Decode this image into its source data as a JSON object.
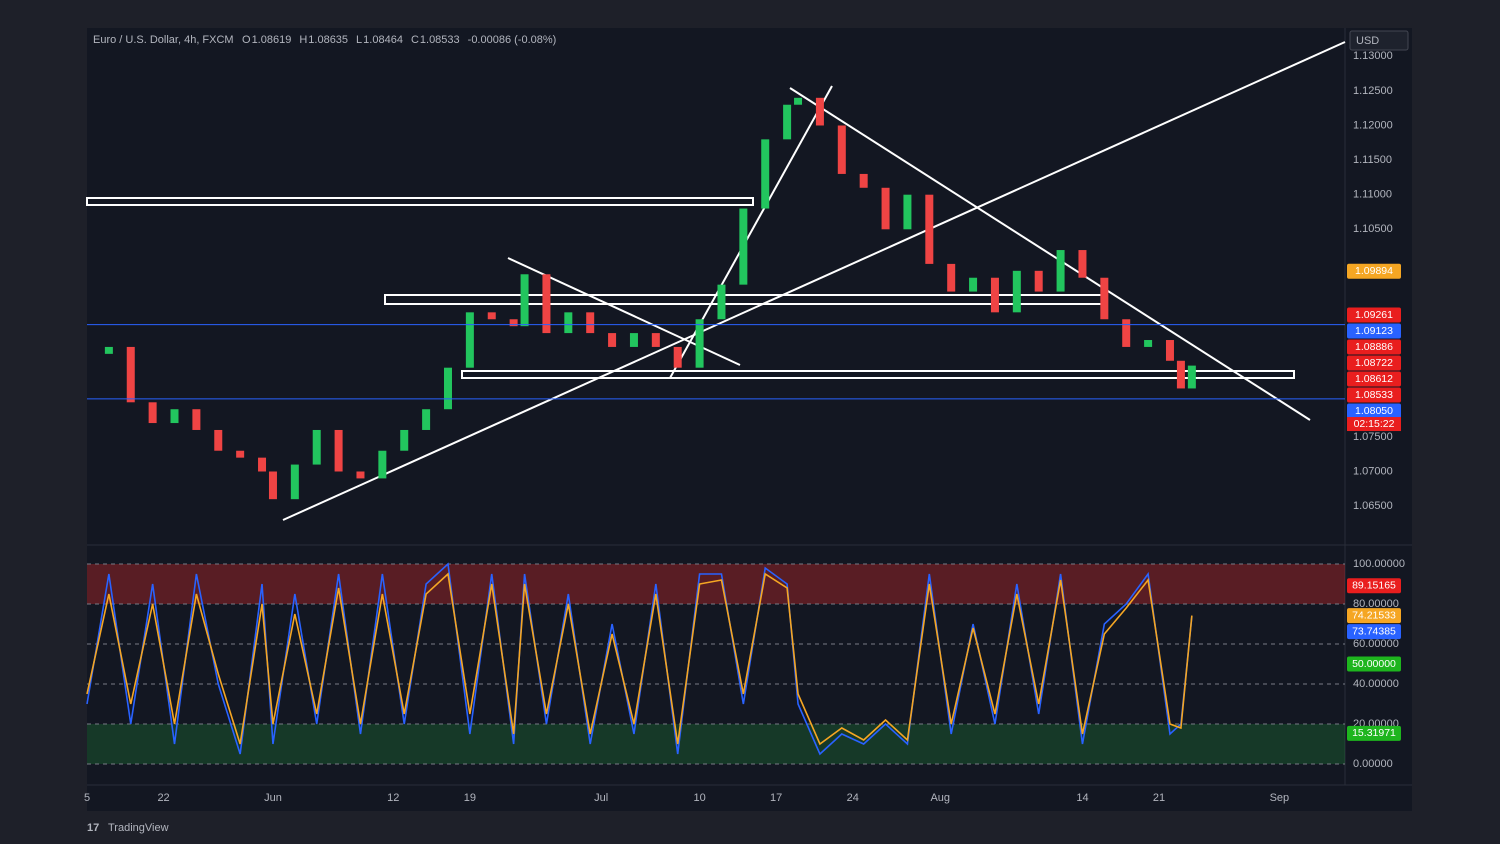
{
  "header": {
    "symbol": "Euro / U.S. Dollar, 4h, FXCM",
    "ohlc": [
      {
        "key": "O",
        "value": "1.08619"
      },
      {
        "key": "H",
        "value": "1.08635"
      },
      {
        "key": "L",
        "value": "1.08464"
      },
      {
        "key": "C",
        "value": "1.08533"
      }
    ],
    "change": "-0.00086 (-0.08%)"
  },
  "currency": "USD",
  "brand": "TradingView",
  "chart_data": [
    {
      "type": "candlestick",
      "x": [
        135,
        137,
        139,
        141,
        143,
        145,
        147,
        149,
        151,
        152,
        154,
        156,
        158,
        160,
        162,
        164,
        166,
        168,
        170,
        172,
        174,
        175,
        177,
        179,
        181,
        183,
        185,
        187,
        189,
        191,
        193,
        195,
        197,
        199,
        200,
        202,
        204,
        206,
        208,
        210,
        212,
        214,
        216,
        218,
        220,
        222,
        224,
        226,
        228,
        230,
        232,
        234,
        235,
        236
      ],
      "values": [
        1.087,
        1.088,
        1.08,
        1.077,
        1.079,
        1.076,
        1.073,
        1.072,
        1.07,
        1.066,
        1.071,
        1.076,
        1.07,
        1.069,
        1.073,
        1.076,
        1.079,
        1.085,
        1.093,
        1.092,
        1.091,
        1.0985,
        1.09,
        1.093,
        1.09,
        1.088,
        1.09,
        1.088,
        1.085,
        1.092,
        1.097,
        1.108,
        1.118,
        1.123,
        1.124,
        1.12,
        1.113,
        1.111,
        1.105,
        1.11,
        1.1,
        1.096,
        1.098,
        1.093,
        1.099,
        1.096,
        1.102,
        1.098,
        1.092,
        1.088,
        1.089,
        1.086,
        1.082,
        1.0853
      ],
      "up_color": "#22c55e",
      "down_color": "#ef4444",
      "xlim": [
        135,
        250
      ],
      "xticks": [
        {
          "value": 135,
          "label": "5"
        },
        {
          "value": 142,
          "label": "22"
        },
        {
          "value": 152,
          "label": "Jun"
        },
        {
          "value": 163,
          "label": "12"
        },
        {
          "value": 170,
          "label": "19"
        },
        {
          "value": 182,
          "label": "Jul"
        },
        {
          "value": 191,
          "label": "10"
        },
        {
          "value": 198,
          "label": "17"
        },
        {
          "value": 205,
          "label": "24"
        },
        {
          "value": 213,
          "label": "Aug"
        },
        {
          "value": 226,
          "label": "14"
        },
        {
          "value": 233,
          "label": "21"
        },
        {
          "value": 244,
          "label": "Sep"
        }
      ],
      "ylim": [
        1.0601,
        1.1338
      ],
      "yticks": [
        {
          "value": 1.13,
          "label": "1.13000"
        },
        {
          "value": 1.125,
          "label": "1.12500"
        },
        {
          "value": 1.12,
          "label": "1.12000"
        },
        {
          "value": 1.115,
          "label": "1.11500"
        },
        {
          "value": 1.11,
          "label": "1.11000"
        },
        {
          "value": 1.105,
          "label": "1.10500"
        },
        {
          "value": 1.075,
          "label": "1.07500"
        },
        {
          "value": 1.07,
          "label": "1.07000"
        },
        {
          "value": 1.065,
          "label": "1.06500"
        }
      ],
      "price_tags": [
        {
          "value": 1.09894,
          "color": "#f5a623"
        },
        {
          "value": 1.09261,
          "color": "#e91e1e"
        },
        {
          "value": 1.09123,
          "color": "#2962ff",
          "line": true
        },
        {
          "value": 1.08886,
          "color": "#e91e1e"
        },
        {
          "value": 1.08722,
          "color": "#e91e1e"
        },
        {
          "value": 1.08612,
          "color": "#e91e1e"
        },
        {
          "value": 1.08533,
          "color": "#e91e1e"
        },
        {
          "value": 1.0805,
          "label": "1.08050",
          "color": "#2962ff",
          "line": true
        }
      ],
      "countdown": "02:15:22"
    },
    {
      "type": "line",
      "series": [
        {
          "color": "#2962ff",
          "values": [
            30,
            95,
            20,
            90,
            10,
            95,
            40,
            5,
            90,
            10,
            85,
            20,
            95,
            15,
            95,
            20,
            90,
            100,
            15,
            95,
            10,
            95,
            20,
            85,
            10,
            70,
            15,
            90,
            5,
            95,
            95,
            30,
            98,
            90,
            30,
            5,
            15,
            10,
            20,
            10,
            95,
            15,
            70,
            20,
            90,
            25,
            95,
            10,
            70,
            80,
            95,
            15,
            20,
            73.7
          ]
        },
        {
          "color": "#f5a623",
          "values": [
            35,
            85,
            30,
            80,
            20,
            85,
            45,
            10,
            80,
            20,
            75,
            25,
            88,
            20,
            85,
            25,
            85,
            95,
            25,
            90,
            15,
            90,
            25,
            80,
            15,
            65,
            20,
            85,
            10,
            90,
            92,
            35,
            95,
            88,
            35,
            10,
            18,
            12,
            22,
            12,
            90,
            20,
            68,
            25,
            85,
            30,
            92,
            15,
            65,
            78,
            92,
            20,
            18,
            74.2
          ]
        }
      ],
      "ylim": [
        -7,
        108
      ],
      "yticks": [
        {
          "value": 0,
          "label": "0.00000"
        },
        {
          "value": 20,
          "label": "20.00000"
        },
        {
          "value": 40,
          "label": "40.00000"
        },
        {
          "value": 60,
          "label": "60.00000"
        },
        {
          "value": 80,
          "label": "80.00000"
        },
        {
          "value": 100,
          "label": "100.00000"
        }
      ],
      "price_tags": [
        {
          "value": 89.15165,
          "label": "89.15165",
          "color": "#e91e1e"
        },
        {
          "value": 74.21533,
          "label": "74.21533",
          "color": "#f5a623"
        },
        {
          "value": 73.74385,
          "label": "73.74385",
          "color": "#2962ff"
        },
        {
          "value": 50,
          "label": "50.00000",
          "color": "#1eb51e"
        },
        {
          "value": 15.31971,
          "label": "15.31971",
          "color": "#1eb51e"
        }
      ]
    }
  ]
}
